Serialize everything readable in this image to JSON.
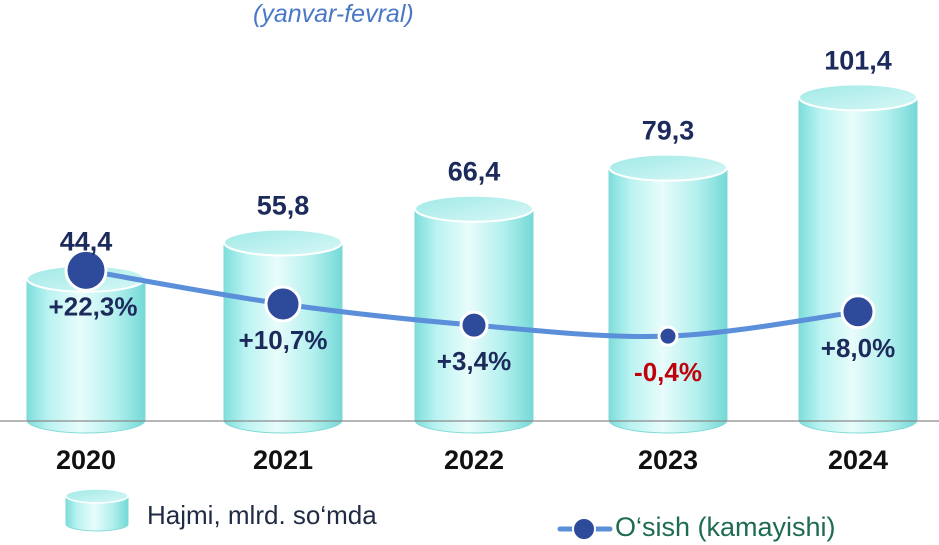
{
  "subtitle": "(yanvar-fevral)",
  "legend": {
    "bars_label": "Hajmi, mlrd. so‘mda",
    "line_label": "O‘sish (kamayishi)"
  },
  "colors": {
    "bar_fill": "#aef0ee",
    "bar_edge": "#7fd9d6",
    "value_text": "#1d2a5c",
    "marker": "#2e4a9a",
    "line": "#5b8fd9",
    "negative": "#c0000b",
    "axis": "#8a8a8a"
  },
  "chart_data": {
    "type": "bar",
    "categories": [
      "2020",
      "2021",
      "2022",
      "2023",
      "2024"
    ],
    "series": [
      {
        "name": "Hajmi, mlrd. so‘mda",
        "values": [
          44.4,
          55.8,
          66.4,
          79.3,
          101.4
        ],
        "labels": [
          "44,4",
          "55,8",
          "66,4",
          "79,3",
          "101,4"
        ]
      },
      {
        "name": "O‘sish (kamayishi)",
        "type": "line",
        "values": [
          22.3,
          10.7,
          3.4,
          -0.4,
          8.0
        ],
        "labels": [
          "+22,3%",
          "+10,7%",
          "+3,4%",
          "-0,4%",
          "+8,0%"
        ]
      }
    ],
    "ylim": [
      0,
      110
    ]
  }
}
